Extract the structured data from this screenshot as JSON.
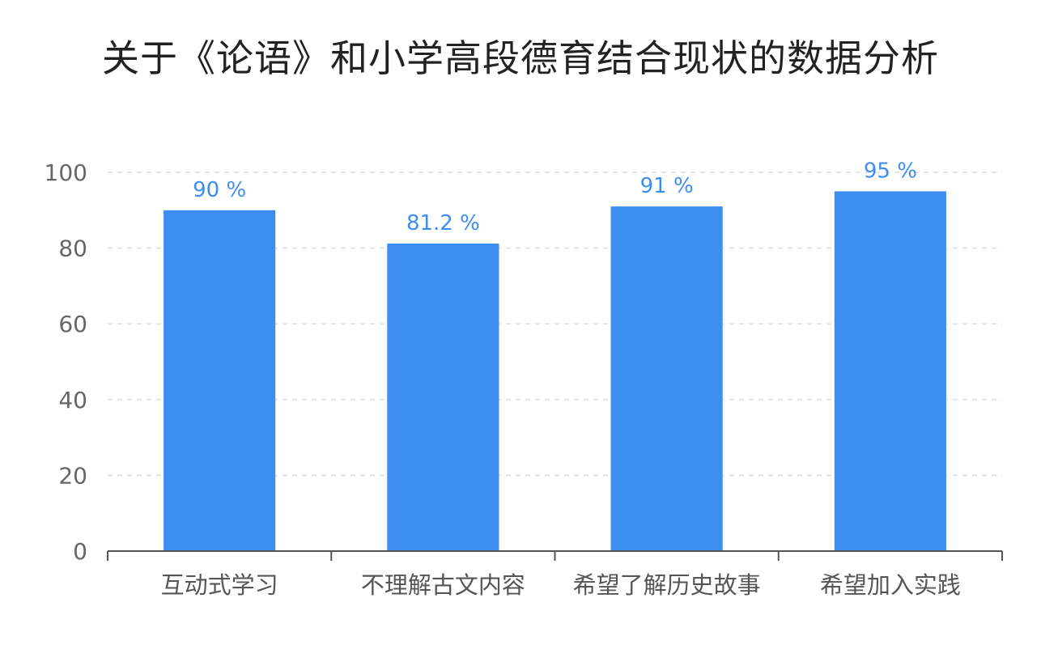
{
  "chart_data": {
    "type": "bar",
    "title": "关于《论语》和小学高段德育结合现状的数据分析",
    "categories": [
      "互动式学习",
      "不理解古文内容",
      "希望了解历史故事",
      "希望加入实践"
    ],
    "values": [
      90,
      81.2,
      91,
      95
    ],
    "data_labels": [
      "90 %",
      "81.2 %",
      "91 %",
      "95 %"
    ],
    "yticks": [
      0,
      20,
      40,
      60,
      80,
      100
    ],
    "ylim": [
      0,
      100
    ],
    "xlabel": "",
    "ylabel": "",
    "grid": true,
    "bar_color": "#3d8ef0",
    "label_color": "#3d8ef0",
    "grid_color": "#e3e3e3",
    "axis_color": "#555555"
  }
}
